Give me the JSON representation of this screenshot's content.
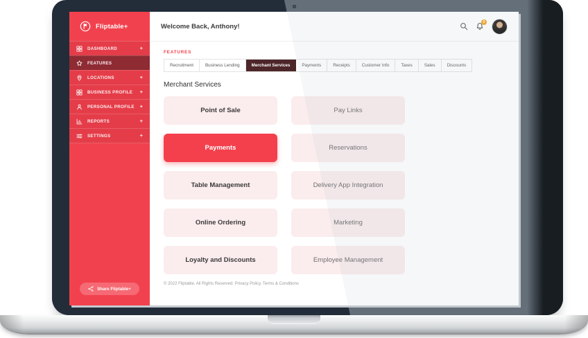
{
  "sidebar": {
    "logo_text": "Fliptable+",
    "items": [
      {
        "label": "DASHBOARD",
        "icon": "dashboard-grid-icon",
        "expand": "+",
        "active": false
      },
      {
        "label": "FEATURES",
        "icon": "star-icon",
        "expand": "",
        "active": true
      },
      {
        "label": "LOCATIONS",
        "icon": "location-pin-icon",
        "expand": "+",
        "active": false
      },
      {
        "label": "BUSINESS PROFILE",
        "icon": "business-grid-icon",
        "expand": "+",
        "active": false
      },
      {
        "label": "PERSONAL PROFILE",
        "icon": "person-icon",
        "expand": "+",
        "active": false
      },
      {
        "label": "REPORTS",
        "icon": "reports-chart-icon",
        "expand": "+",
        "active": false
      },
      {
        "label": "SETTINGS",
        "icon": "settings-sliders-icon",
        "expand": "+",
        "active": false
      }
    ],
    "share_label": "Share Fliptable+"
  },
  "header": {
    "welcome_message": "Welcome Back, Anthony!",
    "notification_count": "5",
    "icons": [
      "search-icon",
      "notification-bell-icon",
      "user-avatar"
    ]
  },
  "features": {
    "section_label": "FEATURES",
    "tabs": [
      {
        "label": "Recruitment",
        "active": false
      },
      {
        "label": "Business Lending",
        "active": false
      },
      {
        "label": "Merchant Services",
        "active": true
      },
      {
        "label": "Payments",
        "active": false
      },
      {
        "label": "Receipts",
        "active": false
      },
      {
        "label": "Customer Info",
        "active": false
      },
      {
        "label": "Taxes",
        "active": false
      },
      {
        "label": "Sales",
        "active": false
      },
      {
        "label": "Discounts",
        "active": false
      }
    ],
    "heading": "Merchant Services",
    "cards": [
      {
        "label": "Point of Sale",
        "highlighted": false
      },
      {
        "label": "Pay Links",
        "highlighted": false
      },
      {
        "label": "Payments",
        "highlighted": true
      },
      {
        "label": "Reservations",
        "highlighted": false
      },
      {
        "label": "Table Management",
        "highlighted": false
      },
      {
        "label": "Delivery App Integration",
        "highlighted": false
      },
      {
        "label": "Online Ordering",
        "highlighted": false
      },
      {
        "label": "Marketing",
        "highlighted": false
      },
      {
        "label": "Loyalty and Discounts",
        "highlighted": false
      },
      {
        "label": "Employee Management",
        "highlighted": false
      }
    ]
  },
  "footer": {
    "text": "© 2022 Fliptable. All Rights Reserved. Privacy Policy. Terms & Conditions"
  },
  "colors": {
    "sidebar_red": "#F2414E",
    "active_menu_item": "#8E2B33",
    "active_tab": "#4D262A",
    "card_pink": "#FBECED",
    "highlight_red": "#F4404D",
    "badge_orange": "#F6A723",
    "bezel_navy": "#232C39"
  }
}
